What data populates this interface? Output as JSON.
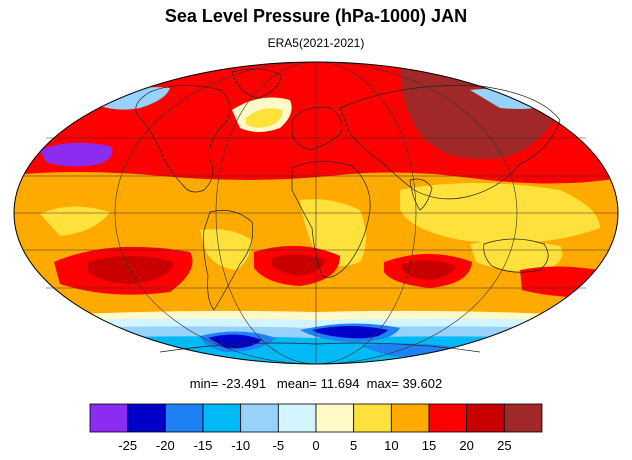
{
  "figure": {
    "title": "Sea Level Pressure (hPa-1000) JAN",
    "subtitle": "ERA5(2021-2021)",
    "stats": {
      "min_label": "min=",
      "min": "-23.491",
      "mean_label": "mean=",
      "mean": "11.694",
      "max_label": "max=",
      "max": "39.602"
    }
  },
  "colorbar": {
    "colors": [
      "#8c2cf0",
      "#0000c8",
      "#1e82f5",
      "#00b9f5",
      "#96d2fa",
      "#d2f5ff",
      "#fffac8",
      "#ffe13c",
      "#ffaa00",
      "#ff0000",
      "#c80000",
      "#a02828"
    ],
    "labels": [
      "-25",
      "-20",
      "-15",
      "-10",
      "-5",
      "0",
      "5",
      "10",
      "15",
      "20",
      "25"
    ]
  },
  "map_colors": {
    "ocean_base": "#ffaa00",
    "land_light": "#ffe13c",
    "high": "#ff0000",
    "very_high": "#c80000",
    "extreme": "#a02828",
    "low_light": "#96d2fa",
    "low_mid": "#00b9f5",
    "low_blue": "#1e82f5",
    "low_deep": "#0000c8",
    "pale": "#fffac8"
  }
}
